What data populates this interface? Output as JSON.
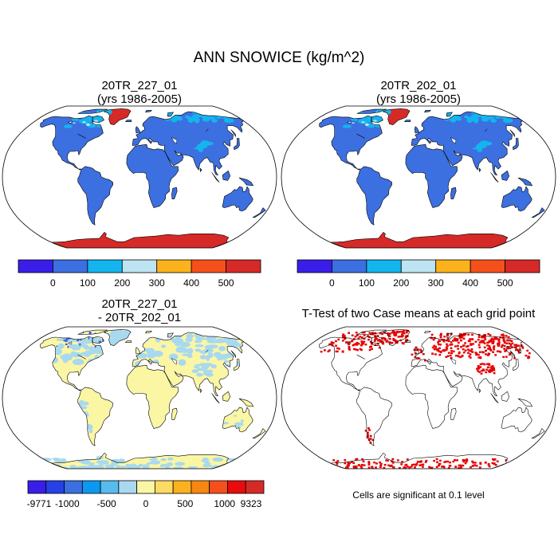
{
  "title": "ANN SNOWICE (kg/m^2)",
  "panels": [
    {
      "id": "case1",
      "title_line1": "20TR_227_01",
      "title_line2": "(yrs 1986-2005)"
    },
    {
      "id": "case2",
      "title_line1": "20TR_202_01",
      "title_line2": "(yrs 1986-2005)"
    },
    {
      "id": "diff",
      "title_line1": "20TR_227_01",
      "title_line2": "- 20TR_202_01"
    },
    {
      "id": "ttest",
      "title_line1": "T-Test of two Case means at each grid point",
      "title_line2": ""
    }
  ],
  "colorbars": {
    "case": {
      "colors": [
        "#3a1ee8",
        "#3c6fe0",
        "#14b4ee",
        "#bde4f2",
        "#fbb21c",
        "#f5501c",
        "#d62a28"
      ],
      "labels": [
        "0",
        "100",
        "200",
        "300",
        "400",
        "500"
      ]
    },
    "diff": {
      "colors": [
        "#3a1ee8",
        "#2641e6",
        "#3c6fe0",
        "#0d98f0",
        "#57bbee",
        "#a8d9ef",
        "#fbf6a4",
        "#fdda62",
        "#fbb21c",
        "#f88612",
        "#f5501c",
        "#e80c0c",
        "#d62a28"
      ],
      "labels": [
        "-9771",
        "-1000",
        "-500",
        "0",
        "500",
        "1000",
        "9323"
      ]
    }
  },
  "significance_note": "Cells are significant at 0.1 level",
  "map_colors": {
    "ocean": "#ffffff",
    "land_case": "#3c6fe0",
    "snow_case": "#14b4ee",
    "light_snow_case": "#bde4f2",
    "ice_case": "#d62a28",
    "land_diff": "#fbf6a4",
    "snow_diff": "#a8d9ef",
    "sig_marks": "#e60000"
  }
}
